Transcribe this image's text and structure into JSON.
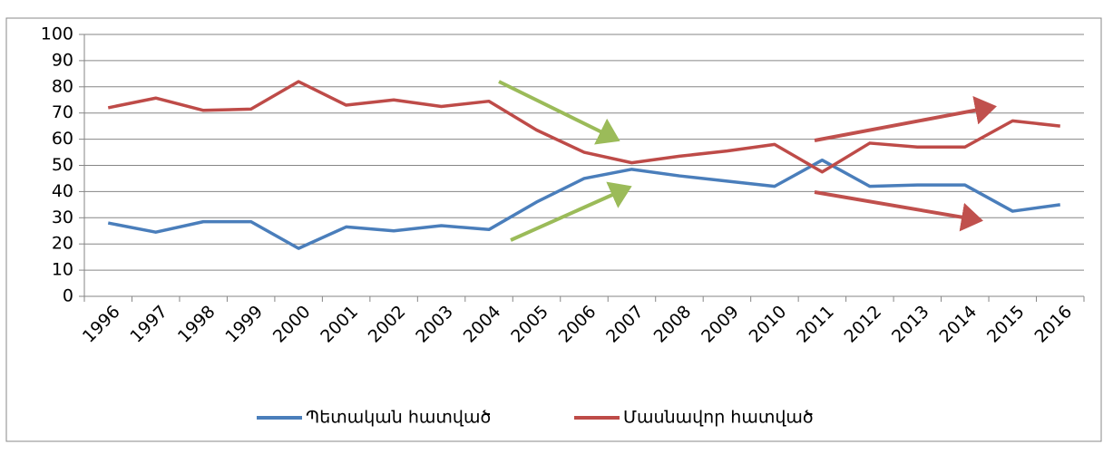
{
  "chart_data": {
    "type": "line",
    "categories": [
      "1996",
      "1997",
      "1998",
      "1999",
      "2000",
      "2001",
      "2002",
      "2003",
      "2004",
      "2005",
      "2006",
      "2007",
      "2008",
      "2009",
      "2010",
      "2011",
      "2012",
      "2013",
      "2014",
      "2015",
      "2016"
    ],
    "series": [
      {
        "name": "Պետական հատված",
        "color": "#4a7ebb",
        "values": [
          28,
          24.5,
          28.5,
          28.5,
          18.3,
          26.5,
          25,
          27,
          25.5,
          36,
          45,
          48.5,
          46,
          44,
          42,
          52,
          42,
          42.5,
          42.5,
          32.5,
          35
        ]
      },
      {
        "name": "Մասնավոր հատված",
        "color": "#be4b48",
        "values": [
          72,
          75.7,
          71,
          71.5,
          82,
          73,
          75,
          72.5,
          74.5,
          63.5,
          55,
          51,
          53.5,
          55.5,
          58,
          47.5,
          58.5,
          57,
          57,
          67,
          65
        ]
      }
    ],
    "ylim": [
      0,
      100
    ],
    "yticks": [
      0,
      10,
      20,
      30,
      40,
      50,
      60,
      70,
      80,
      90,
      100
    ],
    "grid": true,
    "legend": "bottom"
  }
}
